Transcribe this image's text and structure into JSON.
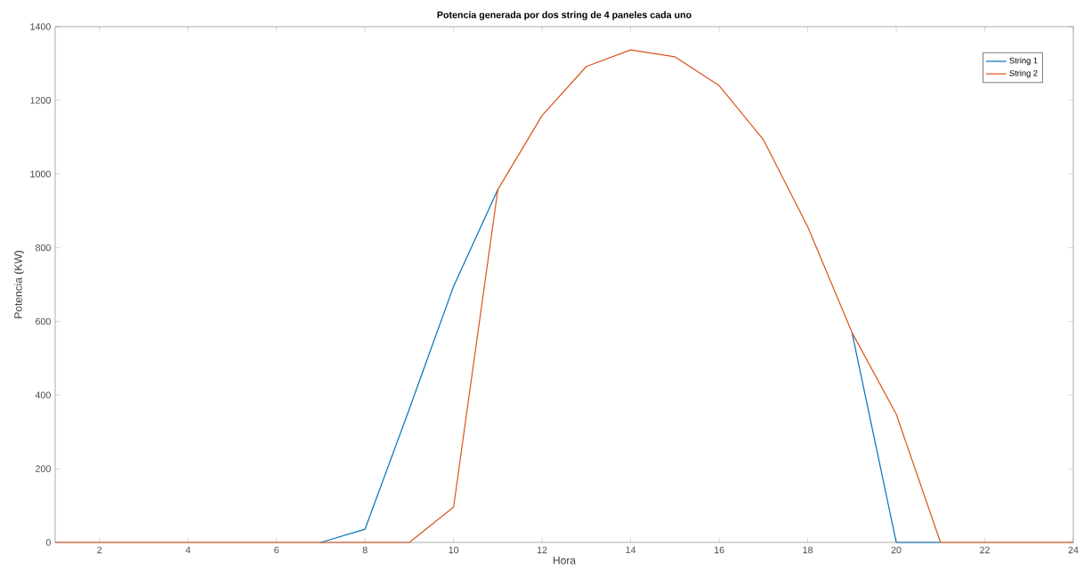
{
  "chart_data": {
    "type": "line",
    "title": "Potencia generada por dos string de 4 paneles cada uno",
    "xlabel": "Hora",
    "ylabel": "Potencia (KW)",
    "x": [
      1,
      2,
      3,
      4,
      5,
      6,
      7,
      8,
      9,
      10,
      11,
      12,
      13,
      14,
      15,
      16,
      17,
      18,
      19,
      20,
      21,
      22,
      23,
      24
    ],
    "series": [
      {
        "name": "String 1",
        "color": "#0072bd",
        "values": [
          null,
          null,
          null,
          null,
          null,
          null,
          0,
          36,
          362,
          695,
          958,
          null,
          null,
          null,
          null,
          null,
          null,
          null,
          570,
          0,
          0,
          null,
          null,
          null
        ]
      },
      {
        "name": "String 2",
        "color": "#d95319",
        "values": [
          0,
          0,
          0,
          0,
          0,
          0,
          0,
          0,
          0,
          96,
          958,
          1159,
          1292,
          1337,
          1318,
          1240,
          1093,
          857,
          570,
          348,
          0,
          0,
          0,
          0
        ]
      }
    ],
    "xlim": [
      1,
      24
    ],
    "xticks": [
      2,
      4,
      6,
      8,
      10,
      12,
      14,
      16,
      18,
      20,
      22,
      24
    ],
    "ylim": [
      0,
      1400
    ],
    "yticks": [
      0,
      200,
      400,
      600,
      800,
      1000,
      1200,
      1400
    ],
    "grid": false,
    "legend": "top right",
    "marker": "none",
    "line_style": "solid"
  }
}
